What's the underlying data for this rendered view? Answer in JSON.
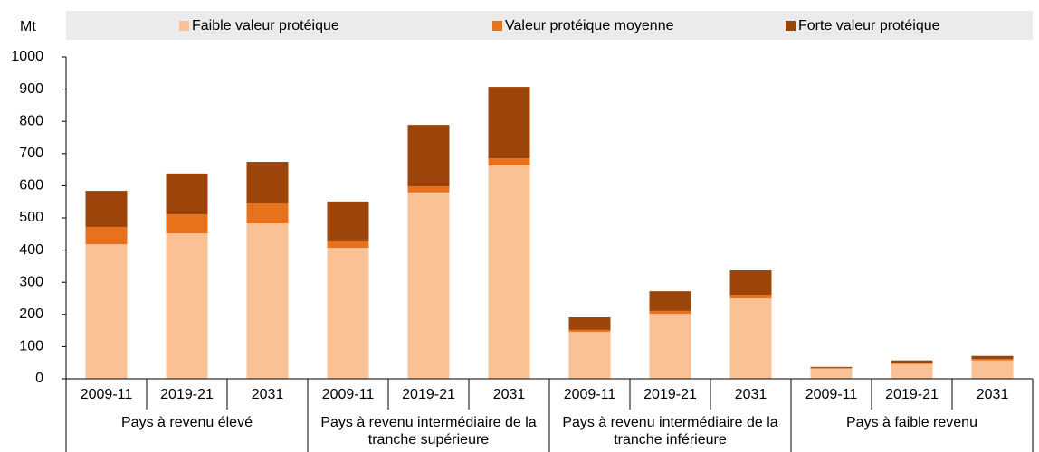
{
  "chart_data": {
    "type": "stacked_bar",
    "y_axis_label": "Mt",
    "groups": [
      {
        "name": "Pays à revenu élevé",
        "categories": [
          "2009-11",
          "2019-21",
          "2031"
        ]
      },
      {
        "name": "Pays à revenu intermédiaire de la tranche supérieure",
        "categories": [
          "2009-11",
          "2019-21",
          "2031"
        ]
      },
      {
        "name": "Pays à revenu intermédiaire de la tranche inférieure",
        "categories": [
          "2009-11",
          "2019-21",
          "2031"
        ]
      },
      {
        "name": "Pays à faible revenu",
        "categories": [
          "2009-11",
          "2019-21",
          "2031"
        ]
      }
    ],
    "series": [
      {
        "name": "Faible valeur protéique",
        "color": "#f9c194",
        "values": [
          418,
          452,
          483,
          407,
          579,
          663,
          146,
          202,
          250,
          32,
          46,
          57
        ]
      },
      {
        "name": "Valeur protéique moyenne",
        "color": "#e8711c",
        "values": [
          54,
          59,
          62,
          20,
          19,
          22,
          6,
          9,
          11,
          2,
          3,
          4
        ]
      },
      {
        "name": "Forte valeur protéique",
        "color": "#9c4409",
        "values": [
          112,
          127,
          129,
          124,
          191,
          222,
          39,
          61,
          76,
          3,
          8,
          10
        ]
      }
    ],
    "ylim": [
      0,
      1000
    ],
    "yticks": [
      0,
      100,
      200,
      300,
      400,
      500,
      600,
      700,
      800,
      900,
      1000
    ],
    "grid": false,
    "legend": "top"
  }
}
